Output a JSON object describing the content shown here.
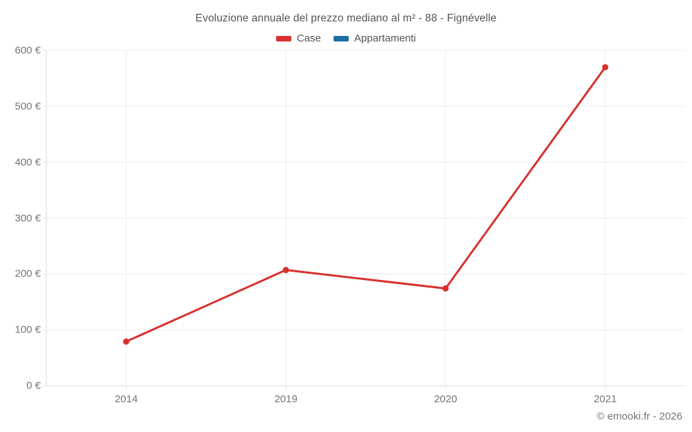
{
  "chart_data": {
    "type": "line",
    "title": "Evoluzione annuale del prezzo mediano al m² - 88 - Fignévelle",
    "categories": [
      "2014",
      "2019",
      "2020",
      "2021"
    ],
    "series": [
      {
        "name": "Case",
        "color": "#d8312f",
        "values": [
          79,
          207,
          174,
          570
        ]
      },
      {
        "name": "Appartamenti",
        "color": "#1c6ea4",
        "values": []
      }
    ],
    "xlabel": "",
    "ylabel": "",
    "ylim": [
      0,
      600
    ],
    "y_ticks": [
      0,
      100,
      200,
      300,
      400,
      500,
      600
    ],
    "y_tick_suffix": " €",
    "grid": true,
    "legend_position": "top",
    "marker": "circle",
    "line_width": 3
  },
  "credit": "© emooki.fr - 2026",
  "colors": {
    "grid": "#ececec",
    "axis": "#dcdcdc",
    "tick_label": "#757575",
    "title_text": "#545454"
  }
}
